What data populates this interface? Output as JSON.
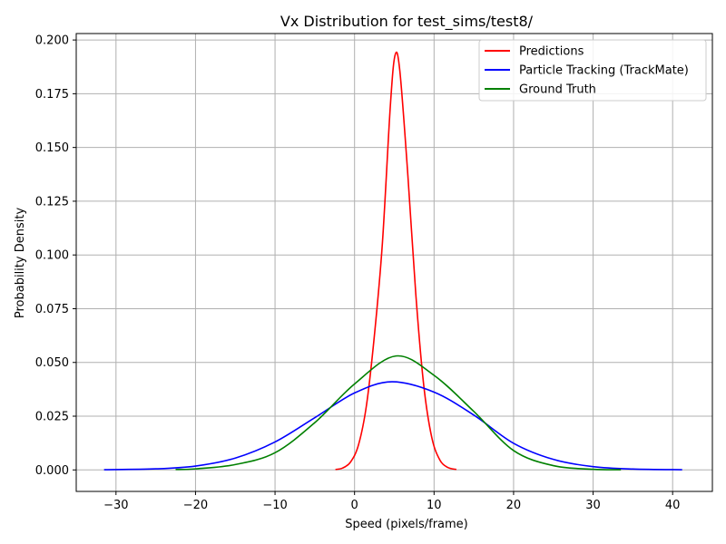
{
  "chart_data": {
    "type": "line",
    "title": "Vx Distribution for test_sims/test8/",
    "xlabel": "Speed (pixels/frame)",
    "ylabel": "Probability Density",
    "xlim": [
      -35,
      45
    ],
    "ylim": [
      -0.01,
      0.203
    ],
    "x_ticks": [
      -30,
      -20,
      -10,
      0,
      10,
      20,
      30,
      40
    ],
    "x_tick_labels": [
      "−30",
      "−20",
      "−10",
      "0",
      "10",
      "20",
      "30",
      "40"
    ],
    "y_ticks": [
      0.0,
      0.025,
      0.05,
      0.075,
      0.1,
      0.125,
      0.15,
      0.175,
      0.2
    ],
    "y_tick_labels": [
      "0.000",
      "0.025",
      "0.050",
      "0.075",
      "0.100",
      "0.125",
      "0.150",
      "0.175",
      "0.200"
    ],
    "grid": true,
    "legend_position": "top-right",
    "series": [
      {
        "name": "Predictions",
        "color": "#ff0000",
        "x": [
          -2.4,
          -1.5,
          -0.5,
          0.5,
          1.5,
          2.5,
          3.5,
          4.5,
          5.1,
          5.7,
          6.7,
          7.7,
          8.7,
          9.7,
          10.7,
          11.7,
          12.8
        ],
        "y": [
          0.0002,
          0.0009,
          0.0037,
          0.0117,
          0.0301,
          0.0627,
          0.1054,
          0.1693,
          0.193,
          0.1855,
          0.1373,
          0.0819,
          0.0394,
          0.0153,
          0.0048,
          0.0012,
          0.0002
        ]
      },
      {
        "name": "Particle Tracking (TrackMate)",
        "color": "#0000ff",
        "x": [
          -31.5,
          -25,
          -20,
          -15,
          -10,
          -5,
          0,
          4.7,
          10,
          15,
          20,
          25,
          30,
          35,
          41.2
        ],
        "y": [
          0.0001,
          0.0005,
          0.0018,
          0.0055,
          0.013,
          0.0243,
          0.0358,
          0.041,
          0.0362,
          0.0255,
          0.0124,
          0.0049,
          0.0015,
          0.0004,
          0.0001
        ]
      },
      {
        "name": "Ground Truth",
        "color": "#008000",
        "x": [
          -22.5,
          -20,
          -15,
          -10,
          -5,
          0,
          5.2,
          10,
          15,
          20,
          25,
          30,
          33.5
        ],
        "y": [
          0.0002,
          0.0005,
          0.0025,
          0.008,
          0.022,
          0.04,
          0.053,
          0.044,
          0.0272,
          0.009,
          0.002,
          0.0003,
          0.0001
        ]
      }
    ]
  }
}
